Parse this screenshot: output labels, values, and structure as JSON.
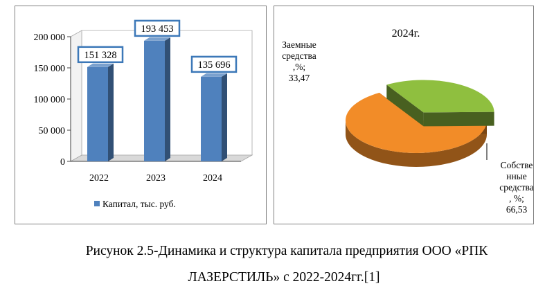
{
  "chart_data": [
    {
      "type": "bar",
      "categories": [
        "2022",
        "2023",
        "2024"
      ],
      "series": [
        {
          "name": "Капитал, тыс. руб.",
          "values": [
            151328,
            193453,
            135696
          ],
          "color": "#4f81bd"
        }
      ],
      "data_labels": [
        "151 328",
        "193 453",
        "135 696"
      ],
      "y_ticks": [
        "0",
        "50 000",
        "100 000",
        "150 000",
        "200 000"
      ],
      "ylim": [
        0,
        200000
      ],
      "legend": "bottom",
      "three_d": true
    },
    {
      "type": "pie",
      "title": "2024г.",
      "three_d": true,
      "slices": [
        {
          "label_lines": [
            "Заемные",
            "средства",
            ",%;",
            "33,47"
          ],
          "value": 33.47,
          "color": "#8fbf3f"
        },
        {
          "label_lines": [
            "Собстве",
            "нные",
            "средства",
            ", %;",
            "66,53"
          ],
          "value": 66.53,
          "color": "#f28c28"
        }
      ]
    }
  ],
  "caption": {
    "line1": "Рисунок 2.5-Динамика и структура капитала предприятия ООО «РПК",
    "line2": "ЛАЗЕРСТИЛЬ» с 2022-2024гг.[1]"
  }
}
